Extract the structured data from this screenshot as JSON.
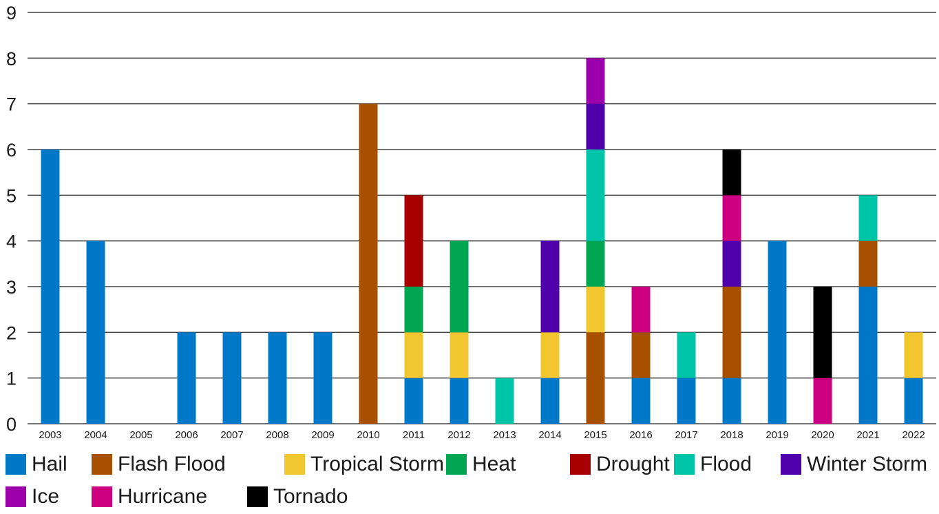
{
  "chart_data": {
    "type": "bar",
    "stacked": true,
    "title": "",
    "xlabel": "",
    "ylabel": "",
    "ylim": [
      0,
      9
    ],
    "yticks": [
      "0",
      "1",
      "2",
      "3",
      "4",
      "5",
      "6",
      "7",
      "8",
      "9"
    ],
    "grid": true,
    "legend_position": "bottom",
    "categories": [
      "2003",
      "2004",
      "2005",
      "2006",
      "2007",
      "2008",
      "2009",
      "2010",
      "2011",
      "2012",
      "2013",
      "2014",
      "2015",
      "2016",
      "2017",
      "2018",
      "2019",
      "2020",
      "2021",
      "2022"
    ],
    "series": [
      {
        "name": "Hail",
        "color": "#0078C8",
        "values": [
          6,
          4,
          0,
          2,
          2,
          2,
          2,
          0,
          1,
          1,
          0,
          1,
          0,
          1,
          1,
          1,
          4,
          0,
          3,
          1
        ]
      },
      {
        "name": "Flash Flood",
        "color": "#A65000",
        "values": [
          0,
          0,
          0,
          0,
          0,
          0,
          0,
          7,
          0,
          0,
          0,
          0,
          2,
          1,
          0,
          2,
          0,
          0,
          1,
          0
        ]
      },
      {
        "name": "Tropical Storm",
        "color": "#F2C62E",
        "values": [
          0,
          0,
          0,
          0,
          0,
          0,
          0,
          0,
          1,
          1,
          0,
          1,
          1,
          0,
          0,
          0,
          0,
          0,
          0,
          1
        ]
      },
      {
        "name": "Heat",
        "color": "#00A651",
        "values": [
          0,
          0,
          0,
          0,
          0,
          0,
          0,
          0,
          1,
          2,
          0,
          0,
          1,
          0,
          0,
          0,
          0,
          0,
          0,
          0
        ]
      },
      {
        "name": "Drought",
        "color": "#A80000",
        "values": [
          0,
          0,
          0,
          0,
          0,
          0,
          0,
          0,
          2,
          0,
          0,
          0,
          0,
          0,
          0,
          0,
          0,
          0,
          0,
          0
        ]
      },
      {
        "name": "Flood",
        "color": "#00C4A7",
        "values": [
          0,
          0,
          0,
          0,
          0,
          0,
          0,
          0,
          0,
          0,
          1,
          0,
          2,
          0,
          1,
          0,
          0,
          0,
          1,
          0
        ]
      },
      {
        "name": "Winter Storm",
        "color": "#5000AA",
        "values": [
          0,
          0,
          0,
          0,
          0,
          0,
          0,
          0,
          0,
          0,
          0,
          2,
          1,
          0,
          0,
          1,
          0,
          0,
          0,
          0
        ]
      },
      {
        "name": "Ice",
        "color": "#9B00AA",
        "values": [
          0,
          0,
          0,
          0,
          0,
          0,
          0,
          0,
          0,
          0,
          0,
          0,
          1,
          0,
          0,
          0,
          0,
          0,
          0,
          0
        ]
      },
      {
        "name": "Hurricane",
        "color": "#CC0080",
        "values": [
          0,
          0,
          0,
          0,
          0,
          0,
          0,
          0,
          0,
          0,
          0,
          0,
          0,
          1,
          0,
          1,
          0,
          1,
          0,
          0
        ]
      },
      {
        "name": "Tornado",
        "color": "#000000",
        "values": [
          0,
          0,
          0,
          0,
          0,
          0,
          0,
          0,
          0,
          0,
          0,
          0,
          0,
          0,
          0,
          1,
          0,
          2,
          0,
          0
        ]
      }
    ]
  }
}
